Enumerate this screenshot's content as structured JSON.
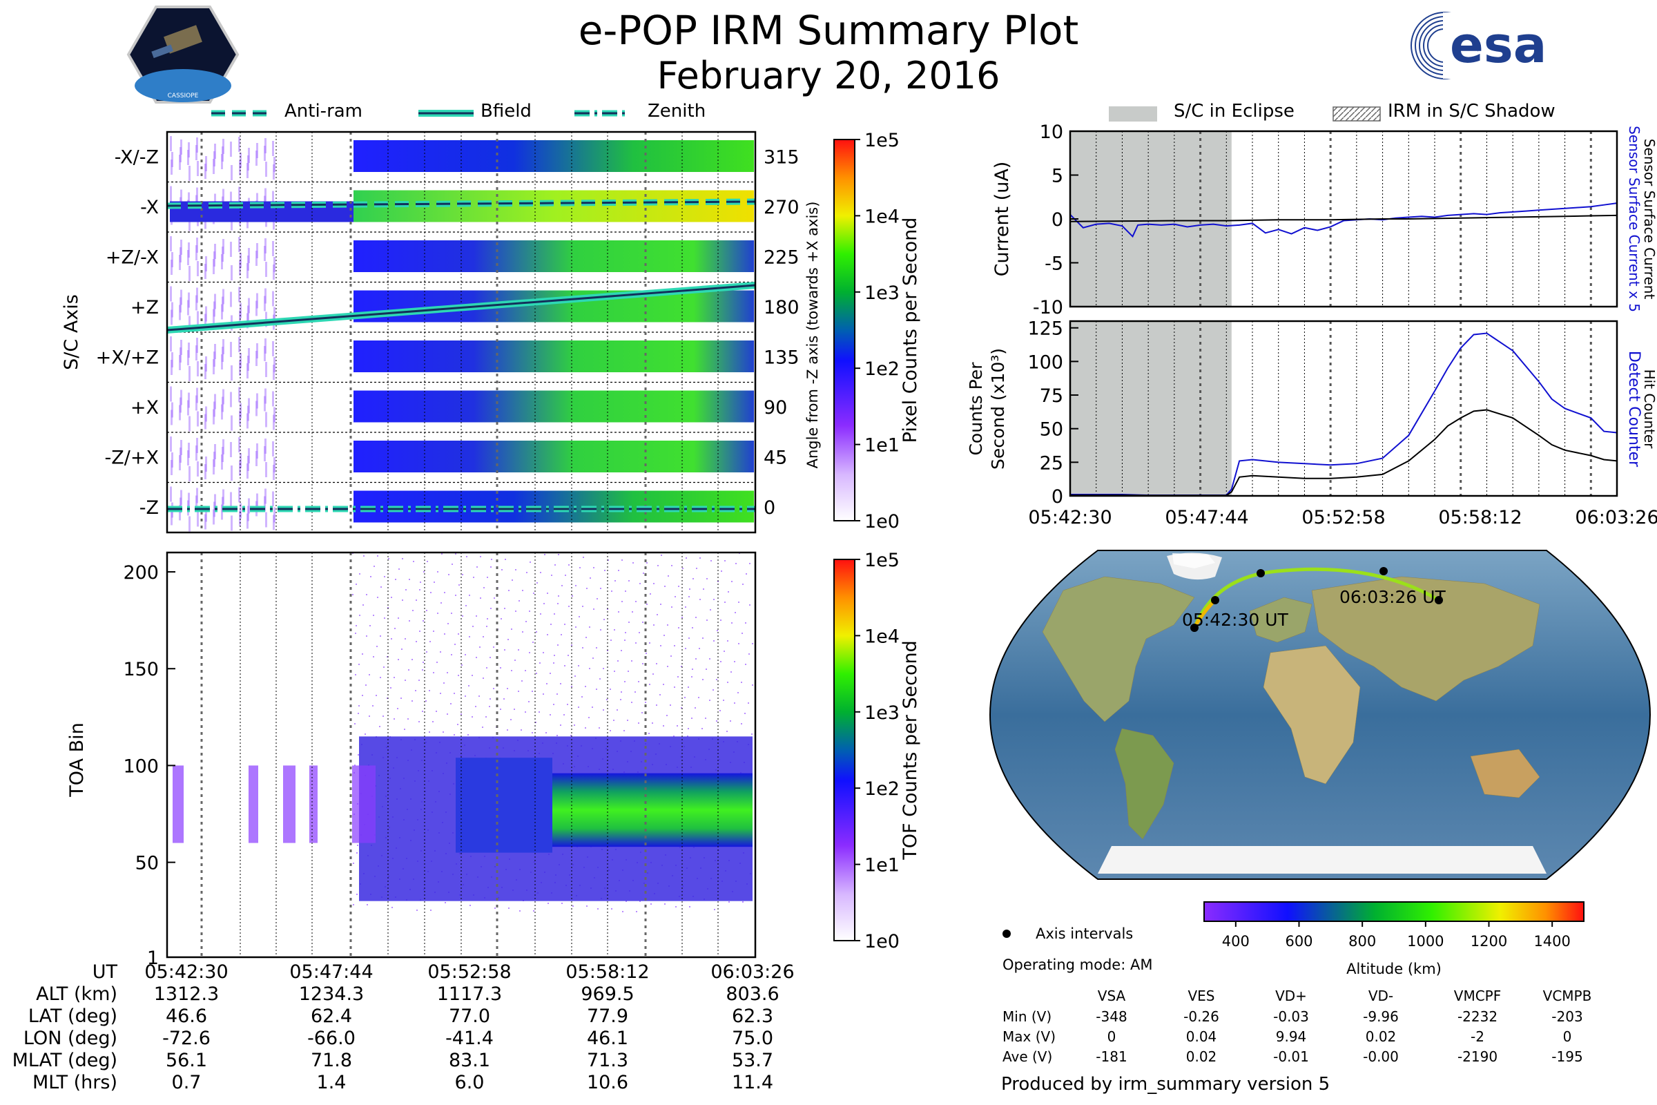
{
  "header": {
    "title": "e-POP IRM Summary Plot",
    "date": "February 20, 2016"
  },
  "logos": {
    "left_caption": "CASSIOPE",
    "right_text": "esa"
  },
  "colors": {
    "eclipse": "#c8cbc9",
    "bfield": "#2ed8b4",
    "detect": "#1010d0",
    "hit": "#000000"
  },
  "chart_data": [
    {
      "type": "heatmap",
      "name": "pixel-counts",
      "ylabel": "S/C Axis",
      "y2label": "Angle from -Z axis (towards +X axis)",
      "rows": [
        "-X/-Z",
        "-X",
        "+Z/-X",
        "+Z",
        "+X/+Z",
        "+X",
        "-Z/+X",
        "-Z"
      ],
      "angles": [
        "315",
        "270",
        "225",
        "180",
        "135",
        "90",
        "45",
        "0"
      ],
      "legend": [
        {
          "label": "Anti-ram",
          "style": "dashed"
        },
        {
          "label": "Bfield",
          "style": "solid"
        },
        {
          "label": "Zenith",
          "style": "dashdot"
        }
      ],
      "colorbar": {
        "label": "Pixel Counts per Second",
        "ticks": [
          "1e5",
          "1e4",
          "1e3",
          "1e2",
          "1e1",
          "1e0"
        ]
      }
    },
    {
      "type": "heatmap",
      "name": "toa",
      "ylabel": "TOA Bin",
      "yticks": [
        "200",
        "150",
        "100",
        "50",
        "1"
      ],
      "colorbar": {
        "label": "TOF Counts per Second",
        "ticks": [
          "1e5",
          "1e4",
          "1e3",
          "1e2",
          "1e1",
          "1e0"
        ]
      }
    },
    {
      "type": "line",
      "name": "current",
      "ylabel": "Current (uA)",
      "ylim": [
        -10,
        10
      ],
      "yticks": [
        "10",
        "5",
        "0",
        "-5",
        "-10"
      ],
      "right_labels": [
        "Sensor Surface Current x 5",
        "Sensor Surface Current"
      ],
      "legend": [
        {
          "label": "S/C in Eclipse"
        },
        {
          "label": "IRM in S/C Shadow"
        }
      ],
      "series": [
        {
          "name": "Sensor Surface Current x 5",
          "x": [
            0,
            0.5,
            1,
            1.5,
            2,
            2.4,
            2.6,
            3,
            3.5,
            4,
            4.5,
            5,
            5.5,
            6,
            6.5,
            7,
            7.5,
            8,
            8.5,
            9,
            9.5,
            10,
            10.5,
            11,
            11.5,
            12,
            12.5,
            13,
            13.5,
            14,
            14.5,
            15,
            15.5,
            16,
            16.5,
            17,
            17.5,
            18,
            18.5,
            19,
            19.5,
            20,
            20.5,
            21
          ],
          "values": [
            0.5,
            -1,
            -0.6,
            -0.5,
            -0.8,
            -2,
            -0.7,
            -0.6,
            -0.7,
            -0.6,
            -0.9,
            -0.7,
            -0.6,
            -0.8,
            -0.7,
            -0.5,
            -1.6,
            -1.2,
            -1.7,
            -1.0,
            -1.3,
            -0.9,
            -0.2,
            -0.1,
            0,
            -0.1,
            0.1,
            0.2,
            0.3,
            0.2,
            0.4,
            0.5,
            0.6,
            0.5,
            0.7,
            0.8,
            0.9,
            1.0,
            1.1,
            1.2,
            1.3,
            1.4,
            1.6,
            1.8
          ]
        },
        {
          "name": "Sensor Surface Current",
          "x": [
            0,
            2,
            4,
            6,
            7,
            8,
            9,
            10,
            11,
            12,
            13,
            14,
            15,
            16,
            17,
            18,
            19,
            20,
            21
          ],
          "values": [
            -0.3,
            -0.25,
            -0.2,
            -0.2,
            -0.15,
            -0.1,
            -0.1,
            -0.1,
            -0.05,
            0,
            0,
            0.05,
            0.1,
            0.15,
            0.2,
            0.25,
            0.3,
            0.35,
            0.4
          ]
        }
      ]
    },
    {
      "type": "line",
      "name": "counts",
      "ylabel": "Counts Per Second (x10^3)",
      "ylim": [
        0,
        130
      ],
      "yticks": [
        "125",
        "100",
        "75",
        "50",
        "25",
        "0"
      ],
      "right_labels": [
        "Detect Counter",
        "Hit Counter"
      ],
      "xticks": [
        "05:42:30",
        "05:47:44",
        "05:52:58",
        "05:58:12",
        "06:03:26"
      ],
      "series": [
        {
          "name": "Detect Counter",
          "x": [
            0,
            1,
            2,
            3,
            4,
            5,
            6,
            6.2,
            6.5,
            7,
            8,
            9,
            10,
            11,
            12,
            13,
            14,
            14.5,
            15,
            15.5,
            16,
            17,
            18,
            18.5,
            19,
            20,
            20.5,
            21
          ],
          "values": [
            1,
            1,
            1,
            0.5,
            0.5,
            0.5,
            0.5,
            5,
            26,
            27,
            25,
            24,
            23,
            24,
            28,
            45,
            78,
            95,
            110,
            120,
            121,
            108,
            85,
            72,
            65,
            58,
            48,
            47
          ]
        },
        {
          "name": "Hit Counter",
          "x": [
            0,
            1,
            2,
            3,
            4,
            5,
            6,
            6.2,
            6.5,
            7,
            8,
            9,
            10,
            11,
            12,
            13,
            14,
            14.5,
            15,
            15.5,
            16,
            17,
            18,
            18.5,
            19,
            20,
            20.5,
            21
          ],
          "values": [
            0.5,
            0.5,
            0.5,
            0.3,
            0.3,
            0.3,
            0.3,
            3,
            14,
            15,
            14,
            13,
            13,
            14,
            16,
            26,
            42,
            52,
            58,
            63,
            64,
            58,
            45,
            38,
            34,
            30,
            27,
            26
          ]
        }
      ]
    }
  ],
  "map": {
    "start_label": "05:42:30 UT",
    "end_label": "06:03:26 UT",
    "legend_label": "Axis intervals",
    "mode": "Operating mode: AM",
    "colorbar_label": "Altitude (km)",
    "colorbar_ticks": [
      "400",
      "600",
      "800",
      "1000",
      "1200",
      "1400"
    ]
  },
  "table": {
    "columns": [
      "VSA",
      "VES",
      "VD+",
      "VD-",
      "VMCPF",
      "VCMPB"
    ],
    "rows": [
      {
        "label": "Min (V)",
        "values": [
          "-348",
          "-0.26",
          "-0.03",
          "-9.96",
          "-2232",
          "-203"
        ]
      },
      {
        "label": "Max (V)",
        "values": [
          "0",
          "0.04",
          "9.94",
          "0.02",
          "-2",
          "0"
        ]
      },
      {
        "label": "Ave (V)",
        "values": [
          "-181",
          "0.02",
          "-0.01",
          "-0.00",
          "-2190",
          "-195"
        ]
      }
    ]
  },
  "ephemeris": {
    "rows": [
      {
        "label": "UT",
        "values": [
          "05:42:30",
          "05:47:44",
          "05:52:58",
          "05:58:12",
          "06:03:26"
        ]
      },
      {
        "label": "ALT (km)",
        "values": [
          "1312.3",
          "1234.3",
          "1117.3",
          "969.5",
          "803.6"
        ]
      },
      {
        "label": "LAT (deg)",
        "values": [
          "46.6",
          "62.4",
          "77.0",
          "77.9",
          "62.3"
        ]
      },
      {
        "label": "LON (deg)",
        "values": [
          "-72.6",
          "-66.0",
          "-41.4",
          "46.1",
          "75.0"
        ]
      },
      {
        "label": "MLAT (deg)",
        "values": [
          "56.1",
          "71.8",
          "83.1",
          "71.3",
          "53.7"
        ]
      },
      {
        "label": "MLT (hrs)",
        "values": [
          "0.7",
          "1.4",
          "6.0",
          "10.6",
          "11.4"
        ]
      }
    ]
  },
  "footer": "Produced by irm_summary version 5"
}
